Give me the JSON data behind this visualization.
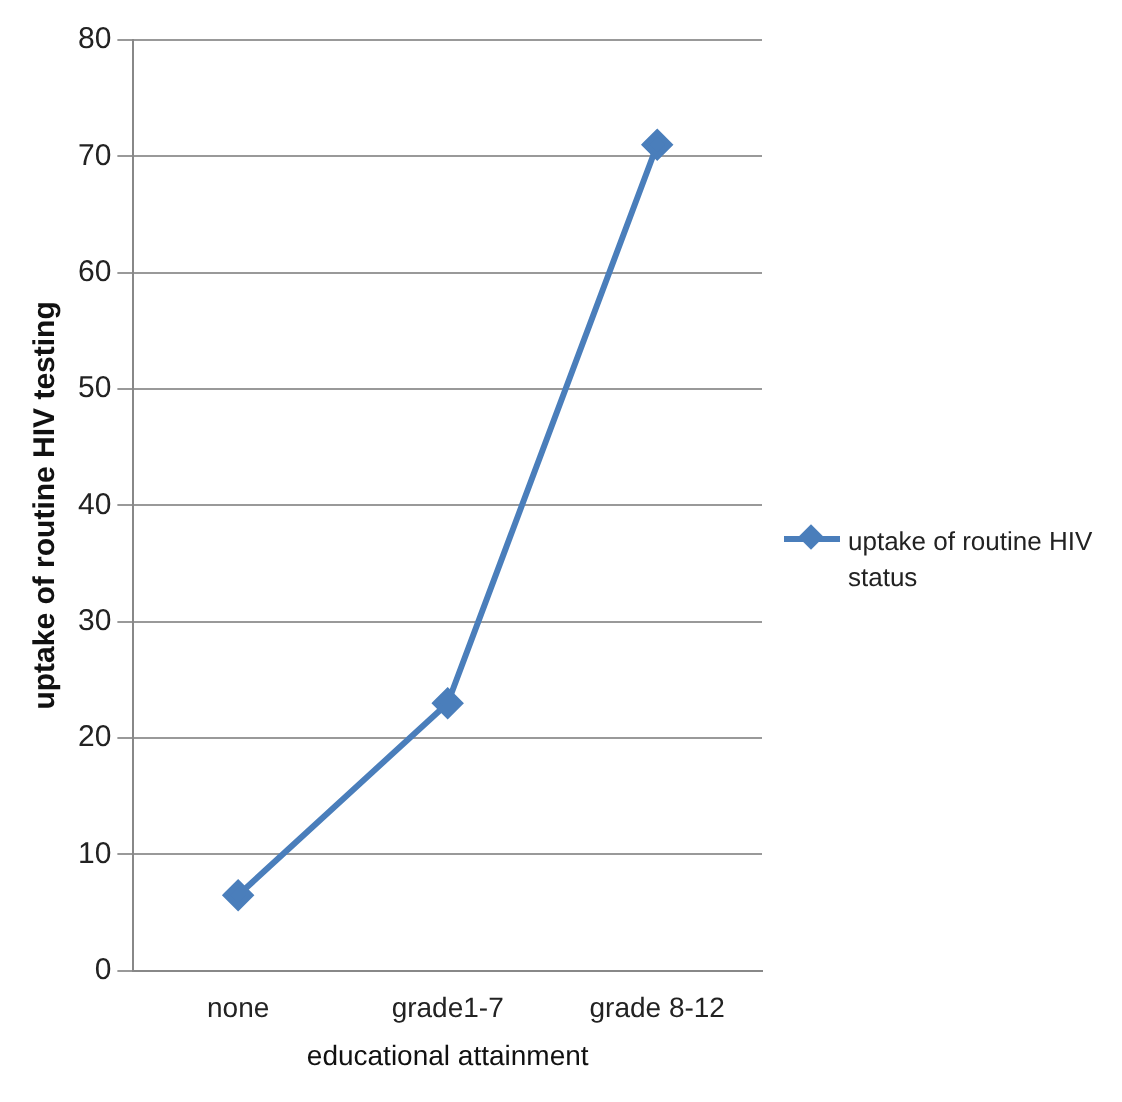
{
  "chart_data": {
    "type": "line",
    "xlabel": "educational attainment",
    "ylabel": "uptake of routine HIV testing",
    "categories": [
      "none",
      "grade1-7",
      "grade 8-12"
    ],
    "series": [
      {
        "name": "uptake of routine HIV status",
        "color": "#4a7ebb",
        "values": [
          6.5,
          23,
          71
        ]
      }
    ],
    "ylim": [
      0,
      80
    ],
    "yticks": [
      0,
      10,
      20,
      30,
      40,
      50,
      60,
      70,
      80
    ],
    "grid": "y",
    "legend": "right",
    "marker": "diamond",
    "line_style": "solid"
  }
}
